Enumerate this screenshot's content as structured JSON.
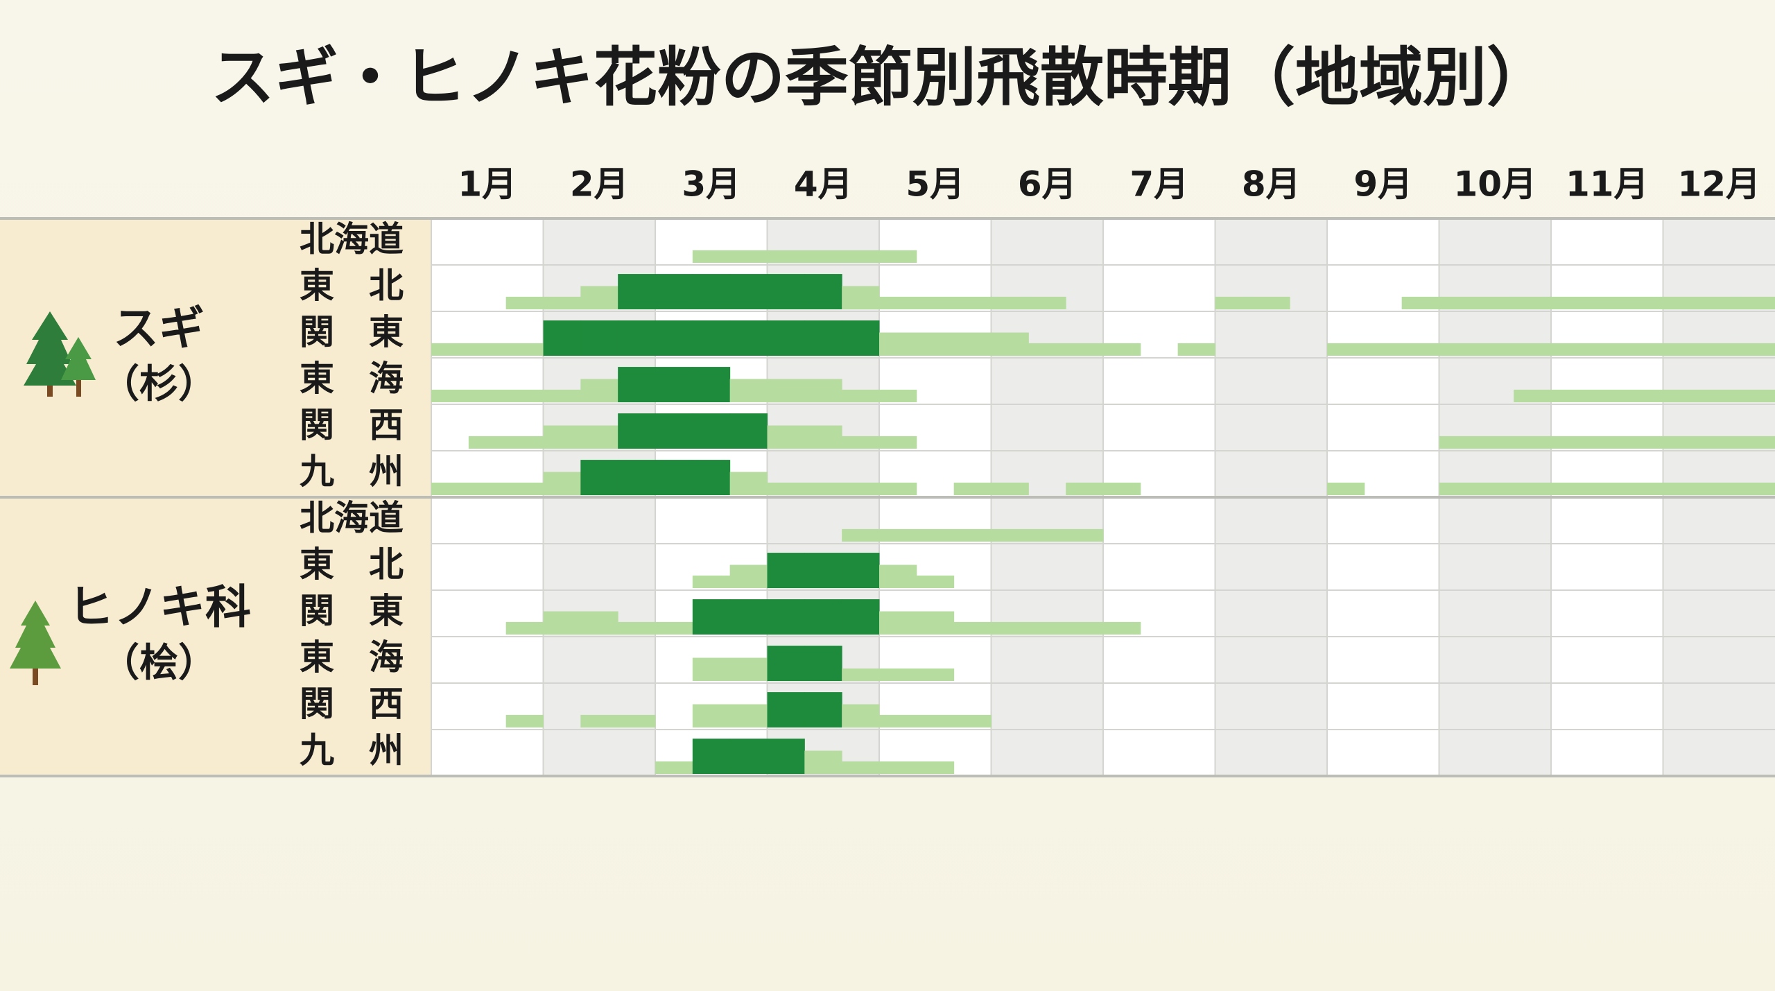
{
  "chart_data": {
    "type": "calendar",
    "title": "スギ・ヒノキ花粉の季節別飛散時期（地域別）",
    "categories": [
      "1月",
      "2月",
      "3月",
      "4月",
      "5月",
      "6月",
      "7月",
      "8月",
      "9月",
      "10月",
      "11月",
      "12月"
    ],
    "level_colors": [
      "#b7dca0",
      "#b7dca0",
      "#1e8a3b"
    ],
    "groups": [
      {
        "name": "スギ",
        "subtitle": "（杉）",
        "rows": [
          {
            "name": "北海道",
            "values": [
              0,
              0,
              0,
              0,
              0,
              0,
              0,
              1,
              1,
              1,
              1,
              1,
              1,
              0,
              0,
              0,
              0,
              0,
              0,
              0,
              0,
              0,
              0,
              0,
              0,
              0,
              0,
              0,
              0,
              0,
              0,
              0,
              0,
              0,
              0,
              0
            ]
          },
          {
            "name": "東　北",
            "values": [
              0,
              0,
              1,
              1,
              2,
              3,
              3,
              3,
              3,
              3,
              3,
              2,
              1,
              1,
              1,
              1,
              1,
              0,
              0,
              0,
              0,
              1,
              1,
              0,
              0,
              0,
              1,
              1,
              1,
              1,
              1,
              1,
              1,
              1,
              1,
              1
            ]
          },
          {
            "name": "関　東",
            "values": [
              1,
              1,
              1,
              3,
              3,
              3,
              3,
              3,
              3,
              3,
              3,
              3,
              2,
              2,
              2,
              2,
              1,
              1,
              1,
              0,
              1,
              0,
              0,
              0,
              1,
              1,
              1,
              1,
              1,
              1,
              1,
              1,
              1,
              1,
              1,
              1
            ]
          },
          {
            "name": "東　海",
            "values": [
              1,
              1,
              1,
              1,
              2,
              3,
              3,
              3,
              2,
              2,
              2,
              1,
              1,
              0,
              0,
              0,
              0,
              0,
              0,
              0,
              0,
              0,
              0,
              0,
              0,
              0,
              0,
              0,
              0,
              1,
              1,
              1,
              1,
              1,
              1,
              1
            ]
          },
          {
            "name": "関　西",
            "values": [
              0,
              1,
              1,
              2,
              2,
              3,
              3,
              3,
              3,
              2,
              2,
              1,
              1,
              0,
              0,
              0,
              0,
              0,
              0,
              0,
              0,
              0,
              0,
              0,
              0,
              0,
              0,
              1,
              1,
              1,
              1,
              1,
              1,
              1,
              1,
              1
            ]
          },
          {
            "name": "九　州",
            "values": [
              1,
              1,
              1,
              2,
              3,
              3,
              3,
              3,
              2,
              1,
              1,
              1,
              1,
              0,
              1,
              1,
              0,
              1,
              1,
              0,
              0,
              0,
              0,
              0,
              1,
              0,
              0,
              1,
              1,
              1,
              1,
              1,
              1,
              1,
              1,
              1
            ]
          }
        ]
      },
      {
        "name": "ヒノキ科",
        "subtitle": "（桧）",
        "rows": [
          {
            "name": "北海道",
            "values": [
              0,
              0,
              0,
              0,
              0,
              0,
              0,
              0,
              0,
              0,
              0,
              1,
              1,
              1,
              1,
              1,
              1,
              1,
              0,
              0,
              0,
              0,
              0,
              0,
              0,
              0,
              0,
              0,
              0,
              0,
              0,
              0,
              0,
              0,
              0,
              0
            ]
          },
          {
            "name": "東　北",
            "values": [
              0,
              0,
              0,
              0,
              0,
              0,
              0,
              1,
              2,
              3,
              3,
              3,
              2,
              1,
              0,
              0,
              0,
              0,
              0,
              0,
              0,
              0,
              0,
              0,
              0,
              0,
              0,
              0,
              0,
              0,
              0,
              0,
              0,
              0,
              0,
              0
            ]
          },
          {
            "name": "関　東",
            "values": [
              0,
              0,
              1,
              2,
              2,
              1,
              1,
              3,
              3,
              3,
              3,
              3,
              2,
              2,
              1,
              1,
              1,
              1,
              1,
              0,
              0,
              0,
              0,
              0,
              0,
              0,
              0,
              0,
              0,
              0,
              0,
              0,
              0,
              0,
              0,
              0
            ]
          },
          {
            "name": "東　海",
            "values": [
              0,
              0,
              0,
              0,
              0,
              0,
              0,
              2,
              2,
              3,
              3,
              1,
              1,
              1,
              0,
              0,
              0,
              0,
              0,
              0,
              0,
              0,
              0,
              0,
              0,
              0,
              0,
              0,
              0,
              0,
              0,
              0,
              0,
              0,
              0,
              0
            ]
          },
          {
            "name": "関　西",
            "values": [
              0,
              0,
              1,
              0,
              1,
              1,
              0,
              2,
              2,
              3,
              3,
              2,
              1,
              1,
              1,
              0,
              0,
              0,
              0,
              0,
              0,
              0,
              0,
              0,
              0,
              0,
              0,
              0,
              0,
              0,
              0,
              0,
              0,
              0,
              0,
              0
            ]
          },
          {
            "name": "九　州",
            "values": [
              0,
              0,
              0,
              0,
              0,
              0,
              1,
              3,
              3,
              3,
              2,
              1,
              1,
              1,
              0,
              0,
              0,
              0,
              0,
              0,
              0,
              0,
              0,
              0,
              0,
              0,
              0,
              0,
              0,
              0,
              0,
              0,
              0,
              0,
              0,
              0
            ]
          }
        ]
      }
    ]
  }
}
